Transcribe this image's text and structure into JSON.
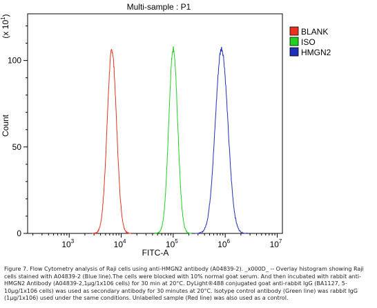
{
  "chart_data": {
    "type": "line",
    "title": "Multi-sample : P1",
    "xlabel": "FITC-A",
    "ylabel": "Count",
    "y_multiplier_label": "(x 10",
    "y_multiplier_exp": "1",
    "x_scale": "log",
    "xlim_log10": [
      2.2,
      7.1
    ],
    "ylim": [
      0,
      127
    ],
    "x_ticks": [
      {
        "base": "10",
        "exp": "3",
        "log": 3
      },
      {
        "base": "10",
        "exp": "4",
        "log": 4
      },
      {
        "base": "10",
        "exp": "5",
        "log": 5
      },
      {
        "base": "10",
        "exp": "6",
        "log": 6
      },
      {
        "base": "10",
        "exp": "7",
        "log": 7
      }
    ],
    "y_ticks": [
      {
        "label": "0",
        "value": 0
      },
      {
        "label": "50",
        "value": 50
      },
      {
        "label": "100",
        "value": 100
      }
    ],
    "legend_position": "top-right",
    "grid": false,
    "series": [
      {
        "name": "BLANK",
        "color": "#e8311f",
        "peak_log10": 3.82,
        "width_log10": 0.09,
        "peak_count": 106
      },
      {
        "name": "ISO",
        "color": "#22d022",
        "peak_log10": 5.0,
        "width_log10": 0.085,
        "peak_count": 107
      },
      {
        "name": "HMGN2",
        "color": "#1f2fb8",
        "peak_log10": 5.93,
        "width_log10": 0.12,
        "peak_count": 107
      }
    ]
  },
  "caption": "Figure 7. Flow Cytometry analysis of Raji cells using anti-HMGN2 antibody (A04839-2). _x000D_ -- Overlay histogram showing Raji cells stained with A04839-2 (Blue line).The cells were blocked with 10% normal goat serum. And then incubated with rabbit anti-HMGN2 Antibody (A04839-2,1μg/1x106 cells) for 30 min at 20°C. DyLight®488 conjugated goat anti-rabbit IgG (BA1127, 5-10μg/1x106 cells) was used as secondary antibody for 30 minutes at 20°C. Isotype control antibody (Green line) was rabbit IgG (1μg/1x106) used under the same conditions. Unlabelled sample (Red line) was also used as a control."
}
